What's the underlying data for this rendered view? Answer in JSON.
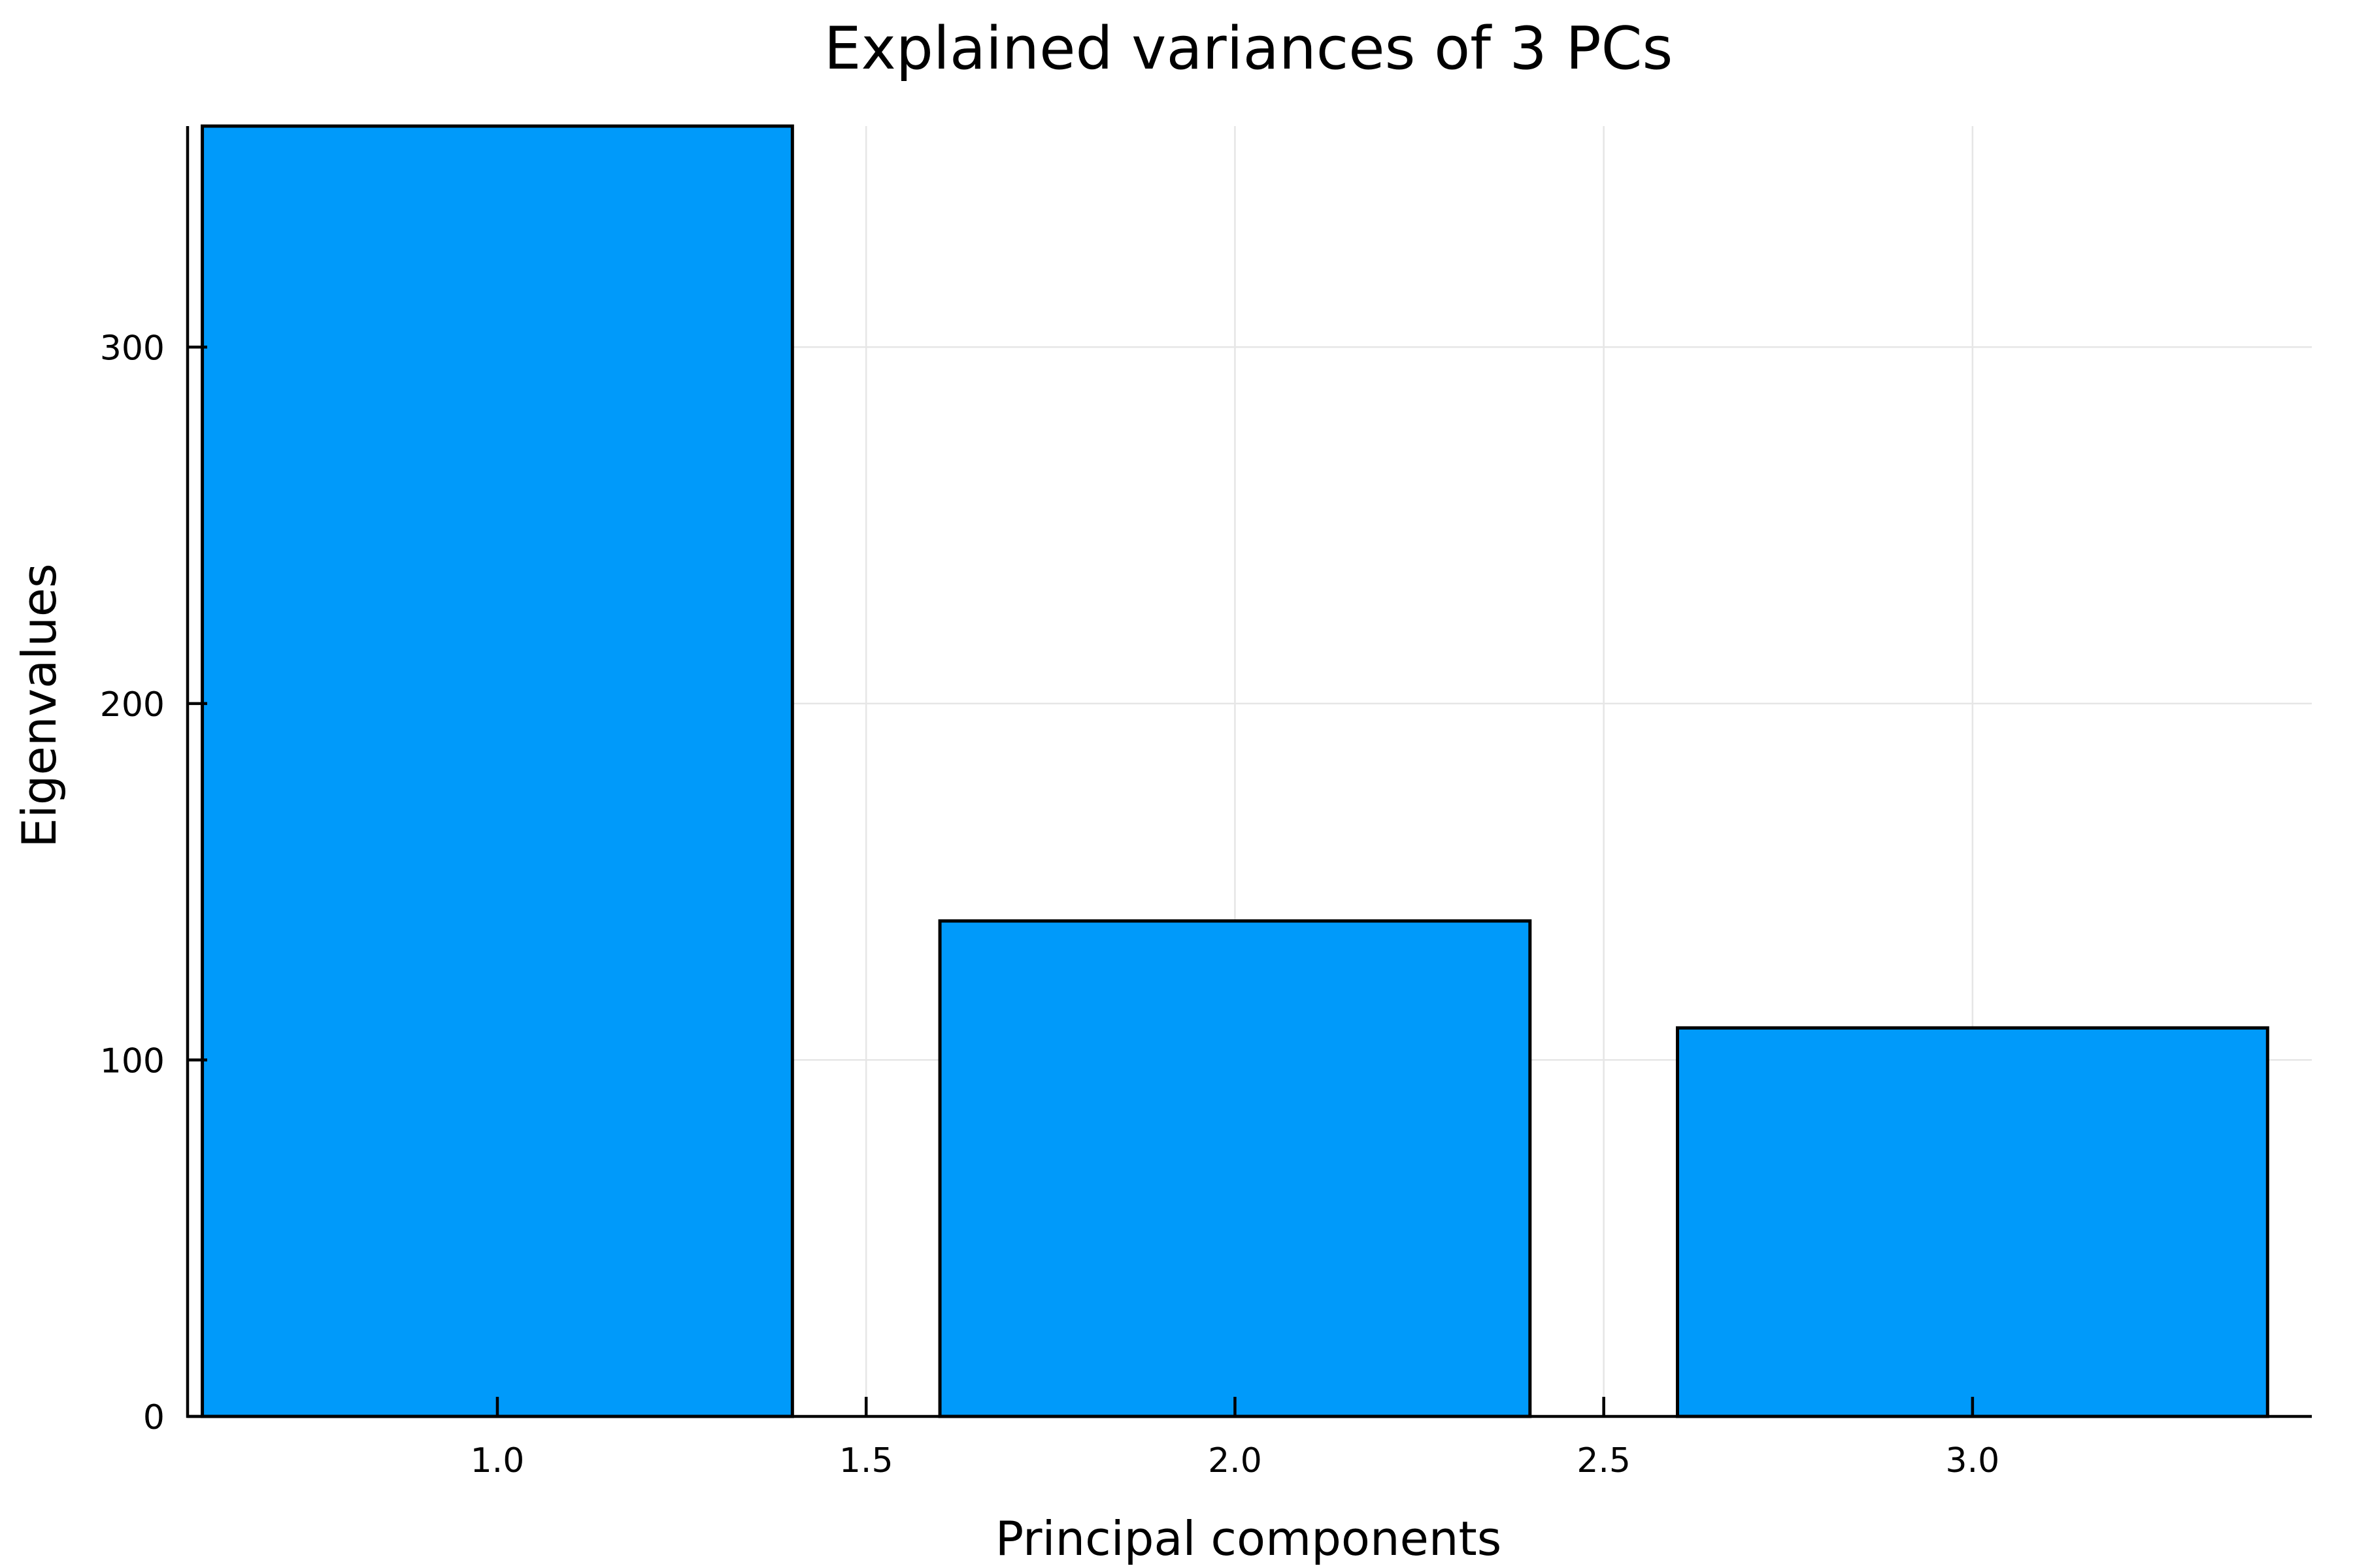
{
  "chart_data": {
    "type": "bar",
    "title": "Explained variances of 3 PCs",
    "xlabel": "Principal components",
    "ylabel": "Eigenvalues",
    "x": [
      1,
      2,
      3
    ],
    "values": [
      362,
      139,
      109
    ],
    "bar_width": 0.8,
    "xlim": [
      0.58,
      3.46
    ],
    "ylim": [
      0,
      362
    ],
    "xticks": [
      "1.0",
      "1.5",
      "2.0",
      "2.5",
      "3.0"
    ],
    "yticks": [
      "0",
      "100",
      "200",
      "300"
    ],
    "grid": true,
    "legend": "none",
    "colors": {
      "bar": "#009AFA",
      "edge": "#000000",
      "grid": "#E6E6E6"
    }
  }
}
